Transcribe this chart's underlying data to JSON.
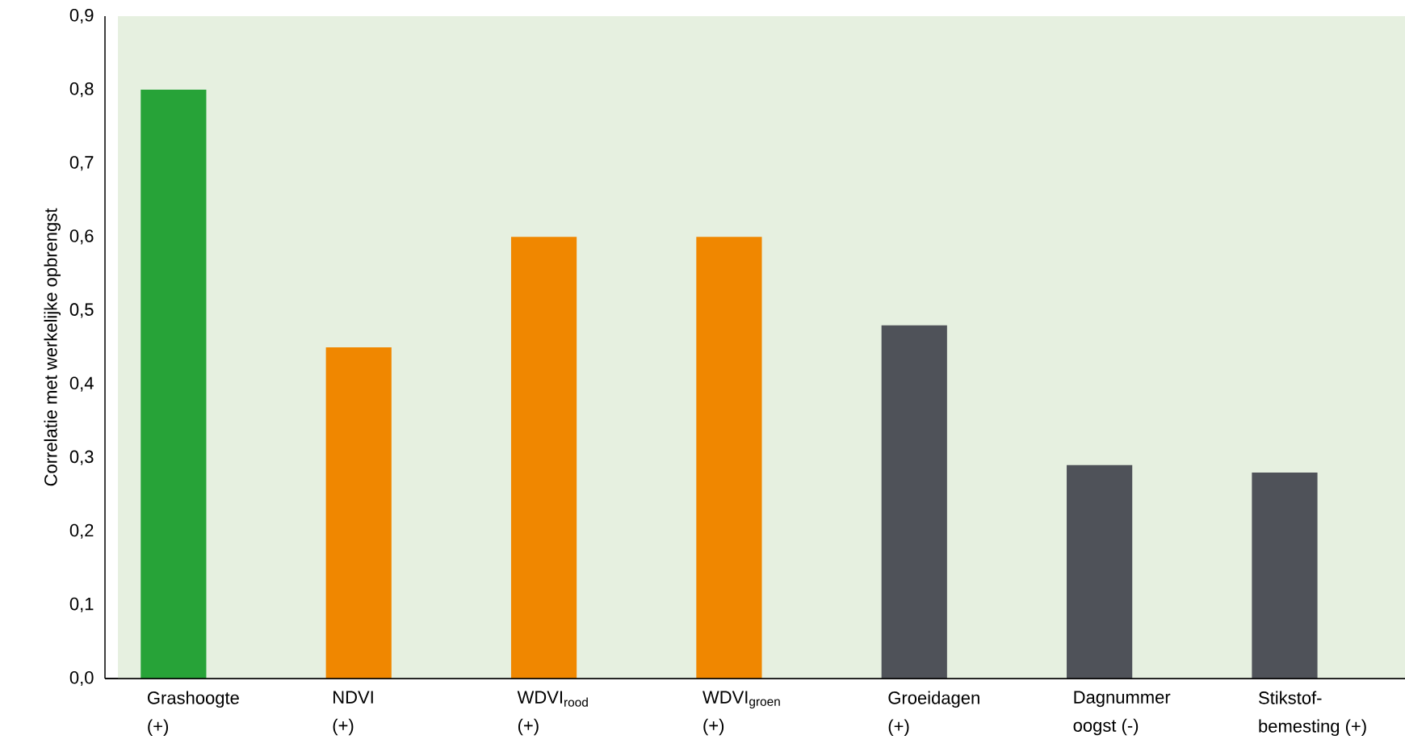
{
  "chart_data": {
    "type": "bar",
    "ylabel": "Correlatie met werkelijke opbrengst",
    "categories": [
      "Grashoogte (+)",
      "NDVI (+)",
      "WDVI$_{rood}$ (+)",
      "WDVI$_{groen}$ (+)",
      "Groeidagen (+)",
      "Dagnummer oogst (-)",
      "Stikstof-bemesting (+)"
    ],
    "values": [
      0.8,
      0.45,
      0.6,
      0.6,
      0.48,
      0.29,
      0.28
    ],
    "colors": [
      "#27a338",
      "#f08700",
      "#f08700",
      "#f08700",
      "#4f5259",
      "#4f5259",
      "#4f5259"
    ],
    "ylim": [
      0,
      0.9
    ],
    "yticks": [
      {
        "value": 0,
        "label": "0,0"
      },
      {
        "value": 0.1,
        "label": "0,1"
      },
      {
        "value": 0.2,
        "label": "0,2"
      },
      {
        "value": 0.3,
        "label": "0,3"
      },
      {
        "value": 0.4,
        "label": "0,4"
      },
      {
        "value": 0.5,
        "label": "0,5"
      },
      {
        "value": 0.6,
        "label": "0,6"
      },
      {
        "value": 0.7,
        "label": "0,7"
      },
      {
        "value": 0.8,
        "label": "0,8"
      },
      {
        "value": 0.9,
        "label": "0,9"
      }
    ]
  }
}
